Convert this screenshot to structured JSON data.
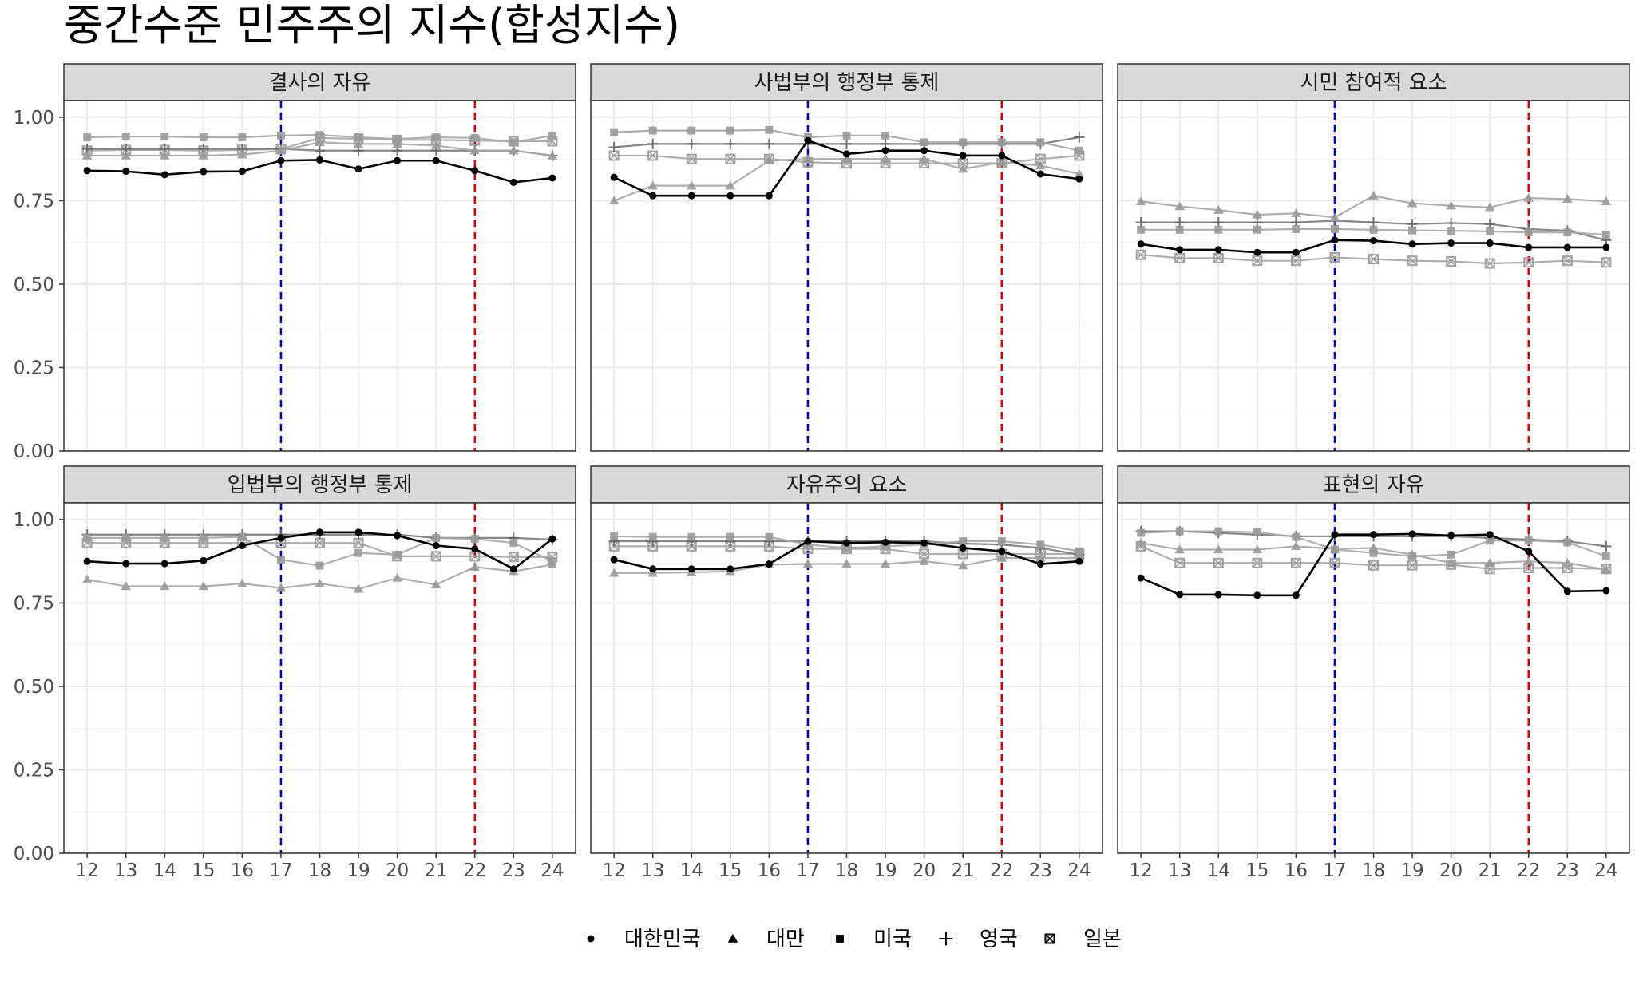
{
  "chart_data": {
    "type": "line",
    "title": "중간수준 민주주의 지수(합성지수)",
    "x": [
      12,
      13,
      14,
      15,
      16,
      17,
      18,
      19,
      20,
      21,
      22,
      23,
      24
    ],
    "ylim": [
      0,
      1.05
    ],
    "yticks": [
      "0.00",
      "0.25",
      "0.50",
      "0.75",
      "1.00"
    ],
    "ytick_values": [
      0,
      0.25,
      0.5,
      0.75,
      1.0
    ],
    "grid": true,
    "legend_position": "bottom",
    "vlines": [
      {
        "x": 17,
        "color": "#0000cc",
        "style": "dashed"
      },
      {
        "x": 22,
        "color": "#dd0000",
        "style": "dashed"
      }
    ],
    "series_styles": [
      {
        "name": "대한민국",
        "shape": "circle",
        "color": "#000000",
        "opacity": 1.0
      },
      {
        "name": "대만",
        "shape": "triangle",
        "color": "#999999",
        "opacity": 0.9
      },
      {
        "name": "미국",
        "shape": "square",
        "color": "#999999",
        "opacity": 0.9
      },
      {
        "name": "영국",
        "shape": "plus",
        "color": "#666666",
        "opacity": 0.9
      },
      {
        "name": "일본",
        "shape": "boxcross",
        "color": "#999999",
        "opacity": 0.9
      }
    ],
    "panels": [
      {
        "title": "결사의 자유",
        "series": [
          {
            "name": "대한민국",
            "values": [
              0.84,
              0.838,
              0.828,
              0.837,
              0.838,
              0.87,
              0.872,
              0.845,
              0.87,
              0.87,
              0.84,
              0.805,
              0.818
            ]
          },
          {
            "name": "대만",
            "values": [
              0.885,
              0.885,
              0.885,
              0.885,
              0.888,
              0.9,
              0.925,
              0.92,
              0.92,
              0.915,
              0.9,
              0.9,
              0.885
            ]
          },
          {
            "name": "미국",
            "values": [
              0.94,
              0.942,
              0.942,
              0.94,
              0.94,
              0.945,
              0.947,
              0.94,
              0.935,
              0.94,
              0.938,
              0.925,
              0.945
            ]
          },
          {
            "name": "영국",
            "values": [
              0.905,
              0.905,
              0.905,
              0.905,
              0.905,
              0.905,
              0.9,
              0.9,
              0.9,
              0.9,
              0.9,
              0.9,
              0.885
            ]
          },
          {
            "name": "일본",
            "values": [
              0.9,
              0.902,
              0.902,
              0.9,
              0.902,
              0.905,
              0.938,
              0.935,
              0.932,
              0.932,
              0.93,
              0.928,
              0.928
            ]
          }
        ]
      },
      {
        "title": "사법부의 행정부 통제",
        "series": [
          {
            "name": "대한민국",
            "values": [
              0.82,
              0.765,
              0.765,
              0.765,
              0.765,
              0.93,
              0.89,
              0.9,
              0.9,
              0.885,
              0.885,
              0.83,
              0.815
            ]
          },
          {
            "name": "대만",
            "values": [
              0.75,
              0.795,
              0.795,
              0.795,
              0.87,
              0.875,
              0.875,
              0.875,
              0.875,
              0.845,
              0.865,
              0.855,
              0.83
            ]
          },
          {
            "name": "미국",
            "values": [
              0.955,
              0.96,
              0.96,
              0.96,
              0.962,
              0.94,
              0.945,
              0.945,
              0.925,
              0.925,
              0.925,
              0.925,
              0.9
            ]
          },
          {
            "name": "영국",
            "values": [
              0.91,
              0.92,
              0.92,
              0.92,
              0.92,
              0.92,
              0.92,
              0.92,
              0.92,
              0.92,
              0.92,
              0.92,
              0.94
            ]
          },
          {
            "name": "일본",
            "values": [
              0.885,
              0.885,
              0.875,
              0.875,
              0.875,
              0.865,
              0.862,
              0.862,
              0.862,
              0.862,
              0.862,
              0.875,
              0.885
            ]
          }
        ]
      },
      {
        "title": "시민 참여적 요소",
        "series": [
          {
            "name": "대한민국",
            "values": [
              0.62,
              0.603,
              0.603,
              0.595,
              0.595,
              0.632,
              0.63,
              0.62,
              0.623,
              0.623,
              0.61,
              0.61,
              0.61
            ]
          },
          {
            "name": "대만",
            "values": [
              0.748,
              0.733,
              0.722,
              0.708,
              0.712,
              0.7,
              0.765,
              0.742,
              0.735,
              0.73,
              0.758,
              0.755,
              0.748
            ]
          },
          {
            "name": "미국",
            "values": [
              0.663,
              0.663,
              0.663,
              0.663,
              0.665,
              0.665,
              0.663,
              0.661,
              0.66,
              0.658,
              0.655,
              0.655,
              0.648
            ]
          },
          {
            "name": "영국",
            "values": [
              0.685,
              0.685,
              0.685,
              0.685,
              0.685,
              0.69,
              0.685,
              0.68,
              0.683,
              0.68,
              0.665,
              0.66,
              0.632
            ]
          },
          {
            "name": "일본",
            "values": [
              0.588,
              0.578,
              0.578,
              0.57,
              0.57,
              0.58,
              0.575,
              0.57,
              0.568,
              0.562,
              0.565,
              0.57,
              0.565
            ]
          }
        ]
      },
      {
        "title": "입법부의 행정부 통제",
        "series": [
          {
            "name": "대한민국",
            "values": [
              0.875,
              0.868,
              0.868,
              0.877,
              0.922,
              0.945,
              0.962,
              0.962,
              0.952,
              0.922,
              0.912,
              0.852,
              0.942
            ]
          },
          {
            "name": "대만",
            "values": [
              0.82,
              0.8,
              0.8,
              0.8,
              0.808,
              0.795,
              0.808,
              0.792,
              0.825,
              0.805,
              0.858,
              0.845,
              0.865
            ]
          },
          {
            "name": "미국",
            "values": [
              0.945,
              0.945,
              0.945,
              0.945,
              0.948,
              0.88,
              0.862,
              0.9,
              0.895,
              0.945,
              0.942,
              0.93,
              0.875
            ]
          },
          {
            "name": "영국",
            "values": [
              0.955,
              0.955,
              0.955,
              0.955,
              0.955,
              0.955,
              0.955,
              0.955,
              0.955,
              0.945,
              0.945,
              0.945,
              0.94
            ]
          },
          {
            "name": "일본",
            "values": [
              0.93,
              0.93,
              0.93,
              0.93,
              0.93,
              0.93,
              0.93,
              0.93,
              0.89,
              0.89,
              0.89,
              0.888,
              0.888
            ]
          }
        ]
      },
      {
        "title": "자유주의 요소",
        "series": [
          {
            "name": "대한민국",
            "values": [
              0.88,
              0.852,
              0.852,
              0.852,
              0.867,
              0.935,
              0.93,
              0.932,
              0.93,
              0.915,
              0.905,
              0.867,
              0.875
            ]
          },
          {
            "name": "대만",
            "values": [
              0.84,
              0.84,
              0.842,
              0.845,
              0.865,
              0.867,
              0.867,
              0.867,
              0.875,
              0.862,
              0.885,
              0.885,
              0.885
            ]
          },
          {
            "name": "미국",
            "values": [
              0.95,
              0.948,
              0.948,
              0.948,
              0.948,
              0.925,
              0.915,
              0.92,
              0.925,
              0.935,
              0.935,
              0.925,
              0.905
            ]
          },
          {
            "name": "영국",
            "values": [
              0.935,
              0.935,
              0.935,
              0.935,
              0.935,
              0.935,
              0.935,
              0.935,
              0.935,
              0.928,
              0.925,
              0.915,
              0.895
            ]
          },
          {
            "name": "일본",
            "values": [
              0.92,
              0.92,
              0.92,
              0.92,
              0.92,
              0.912,
              0.912,
              0.912,
              0.897,
              0.897,
              0.897,
              0.897,
              0.897
            ]
          }
        ]
      },
      {
        "title": "표현의 자유",
        "series": [
          {
            "name": "대한민국",
            "values": [
              0.825,
              0.775,
              0.775,
              0.773,
              0.773,
              0.955,
              0.955,
              0.957,
              0.952,
              0.955,
              0.905,
              0.785,
              0.787
            ]
          },
          {
            "name": "대만",
            "values": [
              0.93,
              0.91,
              0.91,
              0.91,
              0.92,
              0.912,
              0.915,
              0.895,
              0.87,
              0.87,
              0.875,
              0.87,
              0.85
            ]
          },
          {
            "name": "미국",
            "values": [
              0.96,
              0.965,
              0.965,
              0.962,
              0.948,
              0.91,
              0.9,
              0.89,
              0.895,
              0.937,
              0.937,
              0.932,
              0.89
            ]
          },
          {
            "name": "영국",
            "values": [
              0.965,
              0.965,
              0.96,
              0.955,
              0.95,
              0.95,
              0.95,
              0.95,
              0.95,
              0.945,
              0.94,
              0.935,
              0.92
            ]
          },
          {
            "name": "일본",
            "values": [
              0.92,
              0.87,
              0.87,
              0.87,
              0.87,
              0.87,
              0.863,
              0.863,
              0.865,
              0.852,
              0.855,
              0.855,
              0.852
            ]
          }
        ]
      }
    ]
  }
}
